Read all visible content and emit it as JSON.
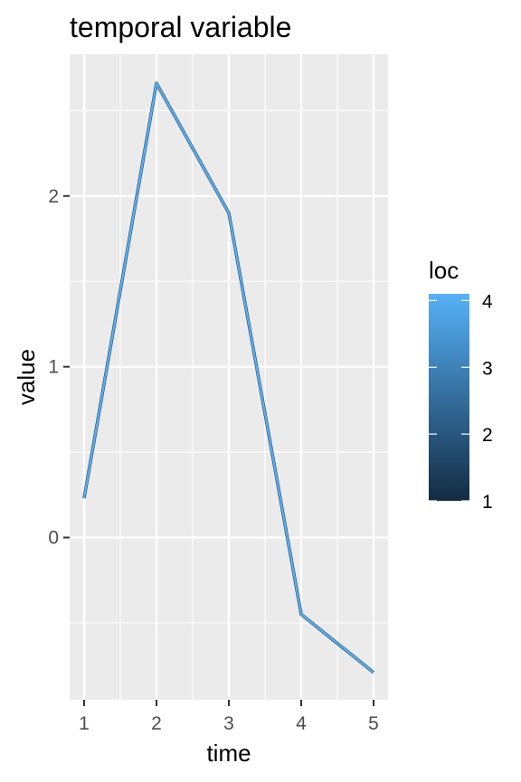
{
  "chart_data": {
    "type": "line",
    "title": "temporal variable",
    "xlabel": "time",
    "ylabel": "value",
    "x": [
      1,
      2,
      3,
      4,
      5
    ],
    "series": [
      {
        "values": [
          0.23,
          2.66,
          1.9,
          -0.45,
          -0.79
        ],
        "color": "#56b1f7"
      }
    ],
    "xlim": [
      0.8,
      5.2
    ],
    "ylim": [
      -0.95,
      2.83
    ],
    "xticks": [
      1,
      2,
      3,
      4,
      5
    ],
    "xtick_labels": [
      "1",
      "2",
      "3",
      "4",
      "5"
    ],
    "yticks": [
      0,
      1,
      2
    ],
    "ytick_labels": [
      "0",
      "1",
      "2"
    ],
    "grid": true,
    "panel_background": "#ebebeb",
    "legend": {
      "title": "loc",
      "type": "colorbar",
      "position": "right",
      "range": [
        1,
        4.1
      ],
      "ticks": [
        1,
        2,
        3,
        4
      ],
      "tick_labels": [
        "1",
        "2",
        "3",
        "4"
      ],
      "colors": [
        "#132b43",
        "#56b1f7"
      ]
    }
  }
}
